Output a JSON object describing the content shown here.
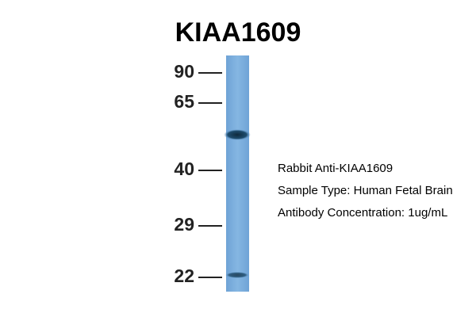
{
  "header": {
    "title": "KIAA1609"
  },
  "markers": [
    "90",
    "65",
    "40",
    "29",
    "22"
  ],
  "annotations": [
    "Rabbit Anti-KIAA1609",
    "Sample Type: Human Fetal Brain",
    "Antibody Concentration: 1ug/mL"
  ]
}
